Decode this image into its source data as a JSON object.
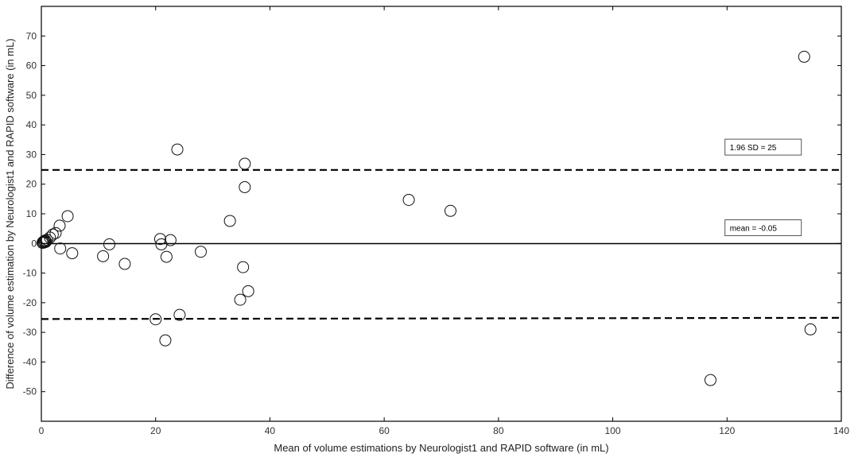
{
  "chart_data": {
    "type": "scatter",
    "title": "",
    "xlabel": "Mean of volume estimations by Neurologist1 and RAPID software (in mL)",
    "ylabel": "Difference of volume estimation by Neurologist1 and RAPID software (in mL)",
    "xlim": [
      0,
      140
    ],
    "ylim": [
      -60,
      80
    ],
    "xticks": [
      0,
      20,
      40,
      60,
      80,
      100,
      120,
      140
    ],
    "yticks": [
      -50,
      -40,
      -30,
      -20,
      -10,
      0,
      10,
      20,
      30,
      40,
      50,
      60,
      70
    ],
    "grid": false,
    "points": [
      {
        "x": 0.2,
        "y": 0.2
      },
      {
        "x": 0.3,
        "y": 0.5
      },
      {
        "x": 0.4,
        "y": 0.3
      },
      {
        "x": 0.5,
        "y": 0.8
      },
      {
        "x": 0.6,
        "y": 0.4
      },
      {
        "x": 0.7,
        "y": 1.0
      },
      {
        "x": 0.8,
        "y": 0.6
      },
      {
        "x": 1.0,
        "y": 1.2
      },
      {
        "x": 1.5,
        "y": 2.0
      },
      {
        "x": 2.0,
        "y": 3.0
      },
      {
        "x": 2.5,
        "y": 3.5
      },
      {
        "x": 3.2,
        "y": 6.0
      },
      {
        "x": 4.6,
        "y": 9.2
      },
      {
        "x": 3.3,
        "y": -1.7
      },
      {
        "x": 5.4,
        "y": -3.3
      },
      {
        "x": 10.8,
        "y": -4.3
      },
      {
        "x": 11.9,
        "y": -0.3
      },
      {
        "x": 14.6,
        "y": -6.9
      },
      {
        "x": 20.0,
        "y": -25.6
      },
      {
        "x": 20.8,
        "y": 1.5
      },
      {
        "x": 21.0,
        "y": -0.3
      },
      {
        "x": 21.7,
        "y": -32.7
      },
      {
        "x": 21.9,
        "y": -4.5
      },
      {
        "x": 22.6,
        "y": 1.1
      },
      {
        "x": 23.8,
        "y": 31.7
      },
      {
        "x": 24.2,
        "y": -24.1
      },
      {
        "x": 27.9,
        "y": -2.8
      },
      {
        "x": 33.0,
        "y": 7.6
      },
      {
        "x": 34.8,
        "y": -19.0
      },
      {
        "x": 35.3,
        "y": -8.0
      },
      {
        "x": 35.6,
        "y": 26.9
      },
      {
        "x": 35.6,
        "y": 19.0
      },
      {
        "x": 36.2,
        "y": -16.1
      },
      {
        "x": 64.3,
        "y": 14.7
      },
      {
        "x": 71.6,
        "y": 11.0
      },
      {
        "x": 117.1,
        "y": -46.1
      },
      {
        "x": 133.5,
        "y": 63.0
      },
      {
        "x": 134.6,
        "y": -29.0
      }
    ],
    "reference_lines": [
      {
        "name": "mean",
        "y": -0.05,
        "style": "solid"
      },
      {
        "name": "upper",
        "y_start": 24.8,
        "y_end": 24.8,
        "style": "dashed"
      },
      {
        "name": "lower",
        "y_start": -25.5,
        "y_end": -25.1,
        "style": "dashed"
      }
    ],
    "annotations": [
      {
        "text": "1.96 SD = 25",
        "anchor_x": 133,
        "anchor_y": 32.5
      },
      {
        "text": "mean = -0.05",
        "anchor_x": 133,
        "anchor_y": 5.3
      }
    ]
  }
}
